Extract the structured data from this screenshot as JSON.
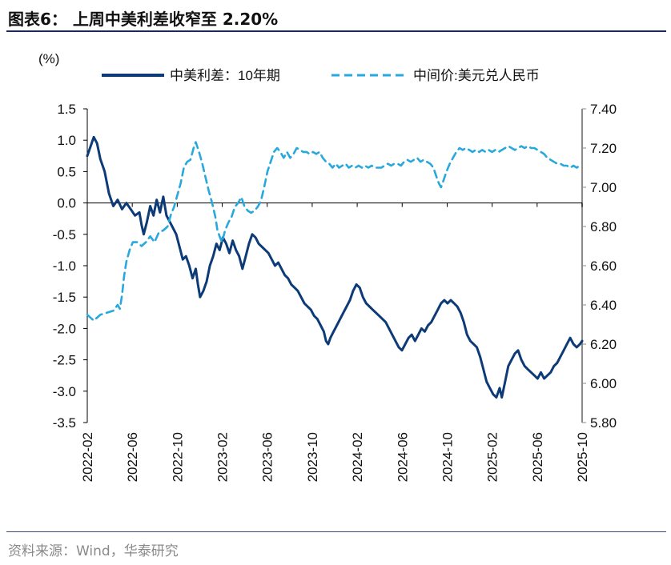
{
  "header": {
    "title": "图表6：  上周中美利差收窄至 2.20%"
  },
  "footer": {
    "source": "资料来源：Wind，华泰研究"
  },
  "chart_data": {
    "type": "line",
    "title": "上周中美利差收窄至 2.20%",
    "ylabel_left": "(%)",
    "ylim_left": [
      -3.5,
      1.5
    ],
    "yticks_left": [
      "1.5",
      "1.0",
      "0.5",
      "0.0",
      "-0.5",
      "-1.0",
      "-1.5",
      "-2.0",
      "-2.5",
      "-3.0",
      "-3.5"
    ],
    "ylim_right": [
      5.8,
      7.4
    ],
    "yticks_right": [
      "7.40",
      "7.20",
      "7.00",
      "6.80",
      "6.60",
      "6.40",
      "6.20",
      "6.00",
      "5.80"
    ],
    "xticks": [
      "2022-02",
      "2022-06",
      "2022-10",
      "2023-02",
      "2023-06",
      "2023-10",
      "2024-02",
      "2024-06",
      "2024-10",
      "2025-02",
      "2025-06",
      "2025-10"
    ],
    "x_start": "2022-02",
    "x_end": "2025-10",
    "series": [
      {
        "name": "中美利差：10年期",
        "axis": "left",
        "style": "solid",
        "color": "#0d3b78",
        "points": [
          [
            0,
            0.75
          ],
          [
            0.15,
            0.9
          ],
          [
            0.3,
            1.05
          ],
          [
            0.45,
            0.95
          ],
          [
            0.6,
            0.7
          ],
          [
            0.8,
            0.5
          ],
          [
            1.0,
            0.15
          ],
          [
            1.2,
            -0.05
          ],
          [
            1.4,
            0.05
          ],
          [
            1.6,
            -0.1
          ],
          [
            1.8,
            0.0
          ],
          [
            2.0,
            -0.1
          ],
          [
            2.2,
            -0.2
          ],
          [
            2.4,
            -0.15
          ],
          [
            2.5,
            -0.35
          ],
          [
            2.6,
            -0.5
          ],
          [
            2.75,
            -0.3
          ],
          [
            2.9,
            -0.05
          ],
          [
            3.05,
            -0.2
          ],
          [
            3.2,
            0.05
          ],
          [
            3.35,
            -0.15
          ],
          [
            3.5,
            0.1
          ],
          [
            3.65,
            -0.2
          ],
          [
            3.8,
            -0.3
          ],
          [
            3.95,
            -0.4
          ],
          [
            4.1,
            -0.5
          ],
          [
            4.25,
            -0.7
          ],
          [
            4.4,
            -0.9
          ],
          [
            4.55,
            -0.85
          ],
          [
            4.7,
            -1.0
          ],
          [
            4.85,
            -1.2
          ],
          [
            5.0,
            -1.05
          ],
          [
            5.1,
            -1.3
          ],
          [
            5.2,
            -1.5
          ],
          [
            5.35,
            -1.4
          ],
          [
            5.5,
            -1.25
          ],
          [
            5.65,
            -1.0
          ],
          [
            5.8,
            -0.85
          ],
          [
            5.95,
            -0.65
          ],
          [
            6.1,
            -0.75
          ],
          [
            6.25,
            -0.55
          ],
          [
            6.4,
            -0.65
          ],
          [
            6.55,
            -0.8
          ],
          [
            6.7,
            -0.6
          ],
          [
            6.85,
            -0.75
          ],
          [
            7.0,
            -0.85
          ],
          [
            7.15,
            -1.05
          ],
          [
            7.3,
            -0.85
          ],
          [
            7.45,
            -0.65
          ],
          [
            7.6,
            -0.5
          ],
          [
            7.75,
            -0.55
          ],
          [
            7.9,
            -0.65
          ],
          [
            8.05,
            -0.7
          ],
          [
            8.2,
            -0.75
          ],
          [
            8.35,
            -0.8
          ],
          [
            8.5,
            -0.9
          ],
          [
            8.65,
            -1.0
          ],
          [
            8.8,
            -0.95
          ],
          [
            8.95,
            -1.05
          ],
          [
            9.1,
            -1.15
          ],
          [
            9.25,
            -1.2
          ],
          [
            9.4,
            -1.3
          ],
          [
            9.55,
            -1.35
          ],
          [
            9.7,
            -1.4
          ],
          [
            9.85,
            -1.5
          ],
          [
            10.0,
            -1.6
          ],
          [
            10.15,
            -1.65
          ],
          [
            10.3,
            -1.7
          ],
          [
            10.45,
            -1.8
          ],
          [
            10.6,
            -1.85
          ],
          [
            10.75,
            -1.95
          ],
          [
            10.9,
            -2.05
          ],
          [
            11.0,
            -2.2
          ],
          [
            11.1,
            -2.25
          ],
          [
            11.2,
            -2.15
          ],
          [
            11.35,
            -2.05
          ],
          [
            11.5,
            -1.95
          ],
          [
            11.65,
            -1.85
          ],
          [
            11.8,
            -1.75
          ],
          [
            11.95,
            -1.65
          ],
          [
            12.1,
            -1.55
          ],
          [
            12.25,
            -1.4
          ],
          [
            12.4,
            -1.3
          ],
          [
            12.55,
            -1.35
          ],
          [
            12.7,
            -1.5
          ],
          [
            12.85,
            -1.6
          ],
          [
            13.0,
            -1.65
          ],
          [
            13.15,
            -1.7
          ],
          [
            13.3,
            -1.75
          ],
          [
            13.45,
            -1.8
          ],
          [
            13.6,
            -1.85
          ],
          [
            13.75,
            -1.9
          ],
          [
            13.9,
            -2.0
          ],
          [
            14.05,
            -2.1
          ],
          [
            14.2,
            -2.2
          ],
          [
            14.35,
            -2.3
          ],
          [
            14.5,
            -2.35
          ],
          [
            14.65,
            -2.25
          ],
          [
            14.8,
            -2.15
          ],
          [
            14.95,
            -2.1
          ],
          [
            15.1,
            -2.2
          ],
          [
            15.25,
            -2.1
          ],
          [
            15.4,
            -2.0
          ],
          [
            15.55,
            -2.05
          ],
          [
            15.7,
            -1.95
          ],
          [
            15.85,
            -1.9
          ],
          [
            16.0,
            -1.8
          ],
          [
            16.15,
            -1.7
          ],
          [
            16.3,
            -1.6
          ],
          [
            16.45,
            -1.55
          ],
          [
            16.6,
            -1.6
          ],
          [
            16.75,
            -1.55
          ],
          [
            16.9,
            -1.6
          ],
          [
            17.05,
            -1.65
          ],
          [
            17.2,
            -1.75
          ],
          [
            17.35,
            -1.9
          ],
          [
            17.5,
            -2.1
          ],
          [
            17.65,
            -2.2
          ],
          [
            17.8,
            -2.25
          ],
          [
            17.95,
            -2.3
          ],
          [
            18.1,
            -2.45
          ],
          [
            18.25,
            -2.65
          ],
          [
            18.4,
            -2.85
          ],
          [
            18.55,
            -2.95
          ],
          [
            18.7,
            -3.05
          ],
          [
            18.85,
            -3.1
          ],
          [
            19.0,
            -2.95
          ],
          [
            19.1,
            -3.1
          ],
          [
            19.25,
            -2.85
          ],
          [
            19.4,
            -2.6
          ],
          [
            19.55,
            -2.5
          ],
          [
            19.7,
            -2.4
          ],
          [
            19.85,
            -2.35
          ],
          [
            20.0,
            -2.5
          ],
          [
            20.15,
            -2.6
          ],
          [
            20.3,
            -2.65
          ],
          [
            20.45,
            -2.7
          ],
          [
            20.6,
            -2.75
          ],
          [
            20.75,
            -2.8
          ],
          [
            20.9,
            -2.7
          ],
          [
            21.05,
            -2.8
          ],
          [
            21.2,
            -2.75
          ],
          [
            21.35,
            -2.7
          ],
          [
            21.5,
            -2.6
          ],
          [
            21.65,
            -2.55
          ],
          [
            21.8,
            -2.45
          ],
          [
            21.95,
            -2.35
          ],
          [
            22.1,
            -2.25
          ],
          [
            22.25,
            -2.15
          ],
          [
            22.4,
            -2.25
          ],
          [
            22.55,
            -2.3
          ],
          [
            22.7,
            -2.25
          ],
          [
            22.8,
            -2.2
          ]
        ]
      },
      {
        "name": "中间价:美元兑人民币",
        "axis": "right",
        "style": "dashed",
        "color": "#29a8dd",
        "points": [
          [
            0,
            6.35
          ],
          [
            0.3,
            6.32
          ],
          [
            0.6,
            6.35
          ],
          [
            0.9,
            6.36
          ],
          [
            1.2,
            6.37
          ],
          [
            1.4,
            6.4
          ],
          [
            1.5,
            6.38
          ],
          [
            1.6,
            6.45
          ],
          [
            1.7,
            6.55
          ],
          [
            1.8,
            6.62
          ],
          [
            1.95,
            6.68
          ],
          [
            2.1,
            6.72
          ],
          [
            2.3,
            6.72
          ],
          [
            2.5,
            6.7
          ],
          [
            2.7,
            6.72
          ],
          [
            2.9,
            6.75
          ],
          [
            3.1,
            6.72
          ],
          [
            3.3,
            6.77
          ],
          [
            3.5,
            6.78
          ],
          [
            3.7,
            6.8
          ],
          [
            3.85,
            6.86
          ],
          [
            4.0,
            6.9
          ],
          [
            4.15,
            6.96
          ],
          [
            4.3,
            7.02
          ],
          [
            4.45,
            7.1
          ],
          [
            4.6,
            7.13
          ],
          [
            4.75,
            7.14
          ],
          [
            4.9,
            7.2
          ],
          [
            5.0,
            7.23
          ],
          [
            5.15,
            7.18
          ],
          [
            5.3,
            7.12
          ],
          [
            5.45,
            7.05
          ],
          [
            5.6,
            6.98
          ],
          [
            5.75,
            6.92
          ],
          [
            5.9,
            6.85
          ],
          [
            6.0,
            6.78
          ],
          [
            6.1,
            6.75
          ],
          [
            6.2,
            6.72
          ],
          [
            6.35,
            6.78
          ],
          [
            6.5,
            6.82
          ],
          [
            6.65,
            6.85
          ],
          [
            6.8,
            6.9
          ],
          [
            6.95,
            6.92
          ],
          [
            7.1,
            6.95
          ],
          [
            7.25,
            6.9
          ],
          [
            7.4,
            6.88
          ],
          [
            7.55,
            6.87
          ],
          [
            7.7,
            6.88
          ],
          [
            7.85,
            6.9
          ],
          [
            8.0,
            6.93
          ],
          [
            8.15,
            7.0
          ],
          [
            8.3,
            7.08
          ],
          [
            8.45,
            7.13
          ],
          [
            8.6,
            7.18
          ],
          [
            8.75,
            7.2
          ],
          [
            8.9,
            7.18
          ],
          [
            9.05,
            7.15
          ],
          [
            9.2,
            7.18
          ],
          [
            9.35,
            7.15
          ],
          [
            9.5,
            7.17
          ],
          [
            9.65,
            7.2
          ],
          [
            9.8,
            7.19
          ],
          [
            9.95,
            7.18
          ],
          [
            10.1,
            7.18
          ],
          [
            10.25,
            7.17
          ],
          [
            10.4,
            7.18
          ],
          [
            10.55,
            7.17
          ],
          [
            10.7,
            7.18
          ],
          [
            10.85,
            7.15
          ],
          [
            11.0,
            7.13
          ],
          [
            11.15,
            7.12
          ],
          [
            11.3,
            7.1
          ],
          [
            11.45,
            7.12
          ],
          [
            11.6,
            7.1
          ],
          [
            11.75,
            7.11
          ],
          [
            11.9,
            7.12
          ],
          [
            12.05,
            7.1
          ],
          [
            12.2,
            7.11
          ],
          [
            12.35,
            7.1
          ],
          [
            12.5,
            7.11
          ],
          [
            12.65,
            7.1
          ],
          [
            12.8,
            7.11
          ],
          [
            12.95,
            7.1
          ],
          [
            13.1,
            7.11
          ],
          [
            13.25,
            7.1
          ],
          [
            13.4,
            7.1
          ],
          [
            13.55,
            7.1
          ],
          [
            13.7,
            7.11
          ],
          [
            13.85,
            7.12
          ],
          [
            14.0,
            7.11
          ],
          [
            14.15,
            7.12
          ],
          [
            14.3,
            7.12
          ],
          [
            14.45,
            7.11
          ],
          [
            14.6,
            7.13
          ],
          [
            14.75,
            7.14
          ],
          [
            14.9,
            7.13
          ],
          [
            15.05,
            7.14
          ],
          [
            15.2,
            7.15
          ],
          [
            15.35,
            7.13
          ],
          [
            15.5,
            7.14
          ],
          [
            15.65,
            7.13
          ],
          [
            15.8,
            7.12
          ],
          [
            15.95,
            7.1
          ],
          [
            16.1,
            7.05
          ],
          [
            16.2,
            7.02
          ],
          [
            16.3,
            7.0
          ],
          [
            16.4,
            7.03
          ],
          [
            16.55,
            7.08
          ],
          [
            16.7,
            7.12
          ],
          [
            16.85,
            7.15
          ],
          [
            17.0,
            7.18
          ],
          [
            17.15,
            7.2
          ],
          [
            17.3,
            7.19
          ],
          [
            17.45,
            7.2
          ],
          [
            17.6,
            7.19
          ],
          [
            17.75,
            7.18
          ],
          [
            17.9,
            7.19
          ],
          [
            18.05,
            7.18
          ],
          [
            18.2,
            7.19
          ],
          [
            18.35,
            7.18
          ],
          [
            18.5,
            7.19
          ],
          [
            18.65,
            7.18
          ],
          [
            18.8,
            7.19
          ],
          [
            18.95,
            7.18
          ],
          [
            19.1,
            7.19
          ],
          [
            19.25,
            7.2
          ],
          [
            19.4,
            7.21
          ],
          [
            19.55,
            7.2
          ],
          [
            19.7,
            7.19
          ],
          [
            19.85,
            7.2
          ],
          [
            20.0,
            7.21
          ],
          [
            20.15,
            7.2
          ],
          [
            20.3,
            7.21
          ],
          [
            20.45,
            7.2
          ],
          [
            20.6,
            7.2
          ],
          [
            20.75,
            7.19
          ],
          [
            20.9,
            7.18
          ],
          [
            21.05,
            7.17
          ],
          [
            21.2,
            7.15
          ],
          [
            21.35,
            7.14
          ],
          [
            21.5,
            7.13
          ],
          [
            21.65,
            7.12
          ],
          [
            21.8,
            7.12
          ],
          [
            21.95,
            7.11
          ],
          [
            22.1,
            7.11
          ],
          [
            22.25,
            7.1
          ],
          [
            22.4,
            7.11
          ],
          [
            22.55,
            7.1
          ],
          [
            22.7,
            7.11
          ],
          [
            22.8,
            7.11
          ]
        ]
      }
    ],
    "x_units": "months since 2022-02 (index)",
    "legend": "top"
  }
}
